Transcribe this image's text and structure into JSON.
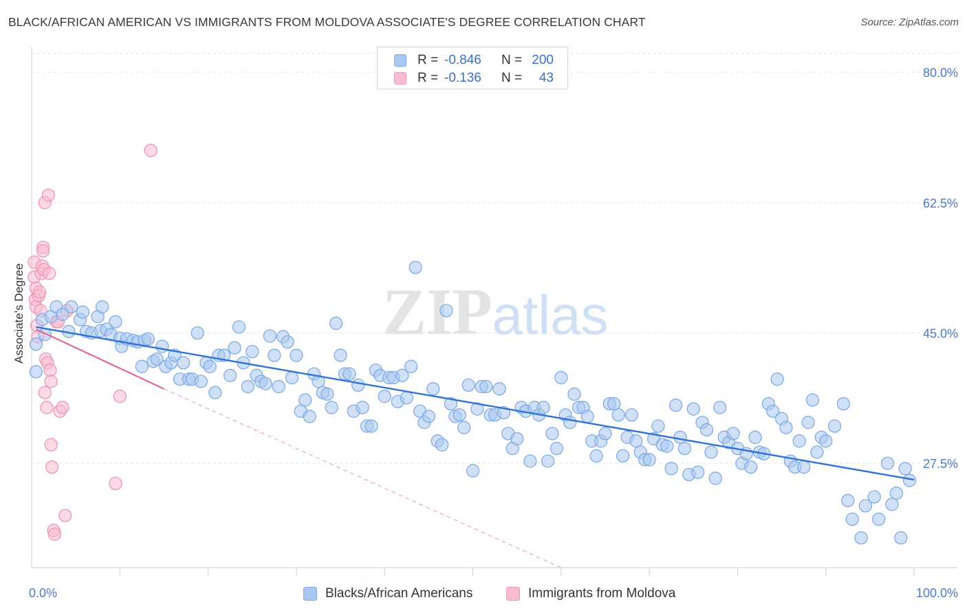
{
  "header": {
    "title": "BLACK/AFRICAN AMERICAN VS IMMIGRANTS FROM MOLDOVA ASSOCIATE'S DEGREE CORRELATION CHART",
    "source": "Source: ZipAtlas.com"
  },
  "watermark": {
    "zip": "ZIP",
    "atlas": "atlas"
  },
  "legend_top": {
    "rows": [
      {
        "r_label": "R =",
        "r_value": "-0.846",
        "n_label": "N =",
        "n_value": "200",
        "color": "#a9c8f1",
        "border": "#7eaae6"
      },
      {
        "r_label": "R =",
        "r_value": "-0.136",
        "n_label": "N =",
        "n_value": "43",
        "color": "#f7bcd0",
        "border": "#ee94b4"
      }
    ]
  },
  "legend_bottom": {
    "items": [
      {
        "label": "Blacks/African Americans",
        "color": "#a9c8f1",
        "border": "#7eaae6"
      },
      {
        "label": "Immigrants from Moldova",
        "color": "#f7bcd0",
        "border": "#ee94b4"
      }
    ]
  },
  "chart_data": {
    "type": "scatter",
    "ylabel": "Associate's Degree",
    "xlim": [
      0,
      100
    ],
    "ylim": [
      13.5,
      82.5
    ],
    "x_tick_labels": [
      "0.0%",
      "100.0%"
    ],
    "y_ticks": [
      27.5,
      45.0,
      62.5,
      80.0
    ],
    "y_tick_labels": [
      "27.5%",
      "45.0%",
      "62.5%",
      "80.0%"
    ],
    "grid": true,
    "series": [
      {
        "name": "Blacks/African Americans",
        "color": "#7eaae6",
        "fill": "#a9c8f1",
        "trend": {
          "x": [
            0.5,
            100
          ],
          "y": [
            45.8,
            25.3
          ]
        },
        "points": [
          [
            0.5,
            43.5
          ],
          [
            0.5,
            39.8
          ],
          [
            1.2,
            46.8
          ],
          [
            1.5,
            44.8
          ],
          [
            2.2,
            47.2
          ],
          [
            2.8,
            48.5
          ],
          [
            3.5,
            47.5
          ],
          [
            4.2,
            45.2
          ],
          [
            4.5,
            48.5
          ],
          [
            5.5,
            46.8
          ],
          [
            5.8,
            47.8
          ],
          [
            6.2,
            45.2
          ],
          [
            6.8,
            45.0
          ],
          [
            7.5,
            47.2
          ],
          [
            7.8,
            45.3
          ],
          [
            8.0,
            48.5
          ],
          [
            8.5,
            45.5
          ],
          [
            9.0,
            44.8
          ],
          [
            9.5,
            46.5
          ],
          [
            10.0,
            44.3
          ],
          [
            10.2,
            43.2
          ],
          [
            10.8,
            44.2
          ],
          [
            11.5,
            44.0
          ],
          [
            12.0,
            43.8
          ],
          [
            12.5,
            40.5
          ],
          [
            12.8,
            44.0
          ],
          [
            13.2,
            44.2
          ],
          [
            13.8,
            41.2
          ],
          [
            14.2,
            41.5
          ],
          [
            14.8,
            43.2
          ],
          [
            15.2,
            40.5
          ],
          [
            15.8,
            41.0
          ],
          [
            16.2,
            42.0
          ],
          [
            16.8,
            38.8
          ],
          [
            17.2,
            41.0
          ],
          [
            17.8,
            38.8
          ],
          [
            18.2,
            38.8
          ],
          [
            18.8,
            45.0
          ],
          [
            19.2,
            38.5
          ],
          [
            19.8,
            41.0
          ],
          [
            20.2,
            40.5
          ],
          [
            20.8,
            37.0
          ],
          [
            21.2,
            42.0
          ],
          [
            21.8,
            42.0
          ],
          [
            22.5,
            39.3
          ],
          [
            23.0,
            43.0
          ],
          [
            23.5,
            45.8
          ],
          [
            24.0,
            41.0
          ],
          [
            24.5,
            37.8
          ],
          [
            25.0,
            42.5
          ],
          [
            25.5,
            39.3
          ],
          [
            26.0,
            38.5
          ],
          [
            26.5,
            38.2
          ],
          [
            27.0,
            44.6
          ],
          [
            27.5,
            42.0
          ],
          [
            28.0,
            37.8
          ],
          [
            28.5,
            44.5
          ],
          [
            29.0,
            43.8
          ],
          [
            29.5,
            39.0
          ],
          [
            30.0,
            42.0
          ],
          [
            30.5,
            34.5
          ],
          [
            31.0,
            36.0
          ],
          [
            31.5,
            33.8
          ],
          [
            32.0,
            39.5
          ],
          [
            32.5,
            38.5
          ],
          [
            33.0,
            37.0
          ],
          [
            33.5,
            36.8
          ],
          [
            34.0,
            35.0
          ],
          [
            34.5,
            46.3
          ],
          [
            35.0,
            42.0
          ],
          [
            35.5,
            39.5
          ],
          [
            36.0,
            39.5
          ],
          [
            36.5,
            34.5
          ],
          [
            37.0,
            38.0
          ],
          [
            37.5,
            35.0
          ],
          [
            38.0,
            32.5
          ],
          [
            38.5,
            32.5
          ],
          [
            39.0,
            40.0
          ],
          [
            39.5,
            39.3
          ],
          [
            40.0,
            36.5
          ],
          [
            40.5,
            39.0
          ],
          [
            41.0,
            39.0
          ],
          [
            41.5,
            35.8
          ],
          [
            42.0,
            39.3
          ],
          [
            42.5,
            36.3
          ],
          [
            43.0,
            40.5
          ],
          [
            43.5,
            53.8
          ],
          [
            44.0,
            34.5
          ],
          [
            44.5,
            33.0
          ],
          [
            45.0,
            33.8
          ],
          [
            45.5,
            37.5
          ],
          [
            46.0,
            30.5
          ],
          [
            46.5,
            30.0
          ],
          [
            47.0,
            48.0
          ],
          [
            47.5,
            35.5
          ],
          [
            48.0,
            33.8
          ],
          [
            48.5,
            34.0
          ],
          [
            49.0,
            32.3
          ],
          [
            49.5,
            38.0
          ],
          [
            50.0,
            26.5
          ],
          [
            50.5,
            34.8
          ],
          [
            51.0,
            37.8
          ],
          [
            51.5,
            37.8
          ],
          [
            52.0,
            34.0
          ],
          [
            52.5,
            34.0
          ],
          [
            53.0,
            37.5
          ],
          [
            53.5,
            34.3
          ],
          [
            54.0,
            31.5
          ],
          [
            54.5,
            29.5
          ],
          [
            55.0,
            30.8
          ],
          [
            55.5,
            35.0
          ],
          [
            56.0,
            34.5
          ],
          [
            56.5,
            27.8
          ],
          [
            57.0,
            35.0
          ],
          [
            57.5,
            34.0
          ],
          [
            58.0,
            35.0
          ],
          [
            58.5,
            27.8
          ],
          [
            59.0,
            31.5
          ],
          [
            59.5,
            29.5
          ],
          [
            60.0,
            39.0
          ],
          [
            60.5,
            34.0
          ],
          [
            61.0,
            33.0
          ],
          [
            61.5,
            36.8
          ],
          [
            62.0,
            35.0
          ],
          [
            62.5,
            35.0
          ],
          [
            63.0,
            33.8
          ],
          [
            63.5,
            30.5
          ],
          [
            64.0,
            28.5
          ],
          [
            64.5,
            30.5
          ],
          [
            65.0,
            31.5
          ],
          [
            65.5,
            35.5
          ],
          [
            66.0,
            35.5
          ],
          [
            66.5,
            34.0
          ],
          [
            67.0,
            28.5
          ],
          [
            67.5,
            31.0
          ],
          [
            68.0,
            34.0
          ],
          [
            68.5,
            30.5
          ],
          [
            69.0,
            29.0
          ],
          [
            69.5,
            28.0
          ],
          [
            70.0,
            28.0
          ],
          [
            70.5,
            30.8
          ],
          [
            71.0,
            32.5
          ],
          [
            71.5,
            30.0
          ],
          [
            72.0,
            29.8
          ],
          [
            72.5,
            26.8
          ],
          [
            73.0,
            35.3
          ],
          [
            73.5,
            31.0
          ],
          [
            74.0,
            29.5
          ],
          [
            74.5,
            26.0
          ],
          [
            75.0,
            34.8
          ],
          [
            75.5,
            26.3
          ],
          [
            76.0,
            33.0
          ],
          [
            76.5,
            32.0
          ],
          [
            77.0,
            29.0
          ],
          [
            77.5,
            25.5
          ],
          [
            78.0,
            35.0
          ],
          [
            78.5,
            31.0
          ],
          [
            79.0,
            30.3
          ],
          [
            79.5,
            31.5
          ],
          [
            80.0,
            29.5
          ],
          [
            80.5,
            27.5
          ],
          [
            81.0,
            28.8
          ],
          [
            81.5,
            27.0
          ],
          [
            82.0,
            31.0
          ],
          [
            82.5,
            29.0
          ],
          [
            83.0,
            28.8
          ],
          [
            83.5,
            35.5
          ],
          [
            84.0,
            34.5
          ],
          [
            84.5,
            38.8
          ],
          [
            85.0,
            33.5
          ],
          [
            85.5,
            32.3
          ],
          [
            86.0,
            27.8
          ],
          [
            86.5,
            27.0
          ],
          [
            87.0,
            30.5
          ],
          [
            87.5,
            27.0
          ],
          [
            88.0,
            33.0
          ],
          [
            88.5,
            36.0
          ],
          [
            89.0,
            29.0
          ],
          [
            89.5,
            31.0
          ],
          [
            90.0,
            30.5
          ],
          [
            91.0,
            32.5
          ],
          [
            92.0,
            35.5
          ],
          [
            92.5,
            22.5
          ],
          [
            93.0,
            20.0
          ],
          [
            94.0,
            17.5
          ],
          [
            94.5,
            21.8
          ],
          [
            95.5,
            23.0
          ],
          [
            96.0,
            20.0
          ],
          [
            97.0,
            27.5
          ],
          [
            97.5,
            22.0
          ],
          [
            98.0,
            23.5
          ],
          [
            98.5,
            17.5
          ],
          [
            99.0,
            26.8
          ],
          [
            99.5,
            25.2
          ]
        ]
      },
      {
        "name": "Immigrants from Moldova",
        "color": "#ee94b4",
        "fill": "#f7bcd0",
        "trend": {
          "x": [
            0.5,
            15.0
          ],
          "y": [
            45.5,
            37.5
          ]
        },
        "trend_ext": {
          "x": [
            15.0,
            60.0
          ],
          "y": [
            37.5,
            13.5
          ]
        },
        "points": [
          [
            0.3,
            54.5
          ],
          [
            0.3,
            52.5
          ],
          [
            0.4,
            49.5
          ],
          [
            0.5,
            51.0
          ],
          [
            0.5,
            48.5
          ],
          [
            0.6,
            46.0
          ],
          [
            0.7,
            44.5
          ],
          [
            0.8,
            50.0
          ],
          [
            0.9,
            50.5
          ],
          [
            1.0,
            48.0
          ],
          [
            1.1,
            53.0
          ],
          [
            1.2,
            54.0
          ],
          [
            1.3,
            56.5
          ],
          [
            1.3,
            56.0
          ],
          [
            1.4,
            53.5
          ],
          [
            1.5,
            62.5
          ],
          [
            1.5,
            37.0
          ],
          [
            1.6,
            41.5
          ],
          [
            1.7,
            35.0
          ],
          [
            1.8,
            41.0
          ],
          [
            1.9,
            63.5
          ],
          [
            2.0,
            53.0
          ],
          [
            2.1,
            40.0
          ],
          [
            2.2,
            30.0
          ],
          [
            2.2,
            38.5
          ],
          [
            2.3,
            27.0
          ],
          [
            2.5,
            18.5
          ],
          [
            2.6,
            18.0
          ],
          [
            2.8,
            46.5
          ],
          [
            3.0,
            46.5
          ],
          [
            3.2,
            34.5
          ],
          [
            3.5,
            35.0
          ],
          [
            3.8,
            20.5
          ],
          [
            4.0,
            48.0
          ],
          [
            9.5,
            24.8
          ],
          [
            10.0,
            36.5
          ],
          [
            13.5,
            69.5
          ]
        ]
      }
    ]
  }
}
